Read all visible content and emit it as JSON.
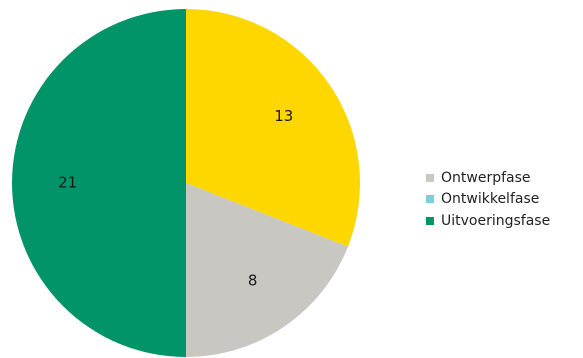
{
  "chart_data": {
    "type": "pie",
    "title": "",
    "slices": [
      {
        "label": "",
        "value": 13,
        "color": "#ffd700"
      },
      {
        "label": "Ontwerpfase",
        "value": 8,
        "color": "#c8c7c2"
      },
      {
        "label": "Ontwikkelfase",
        "value": 0,
        "color": "#7ccfd7"
      },
      {
        "label": "Uitvoeringsfase",
        "value": 21,
        "color": "#009468"
      }
    ],
    "legend": {
      "placement": "right",
      "items": [
        {
          "label": "Ontwerpfase",
          "color": "#c8c7c2"
        },
        {
          "label": "Ontwikkelfase",
          "color": "#7ccfd7"
        },
        {
          "label": "Uitvoeringsfase",
          "color": "#009468"
        }
      ]
    }
  }
}
